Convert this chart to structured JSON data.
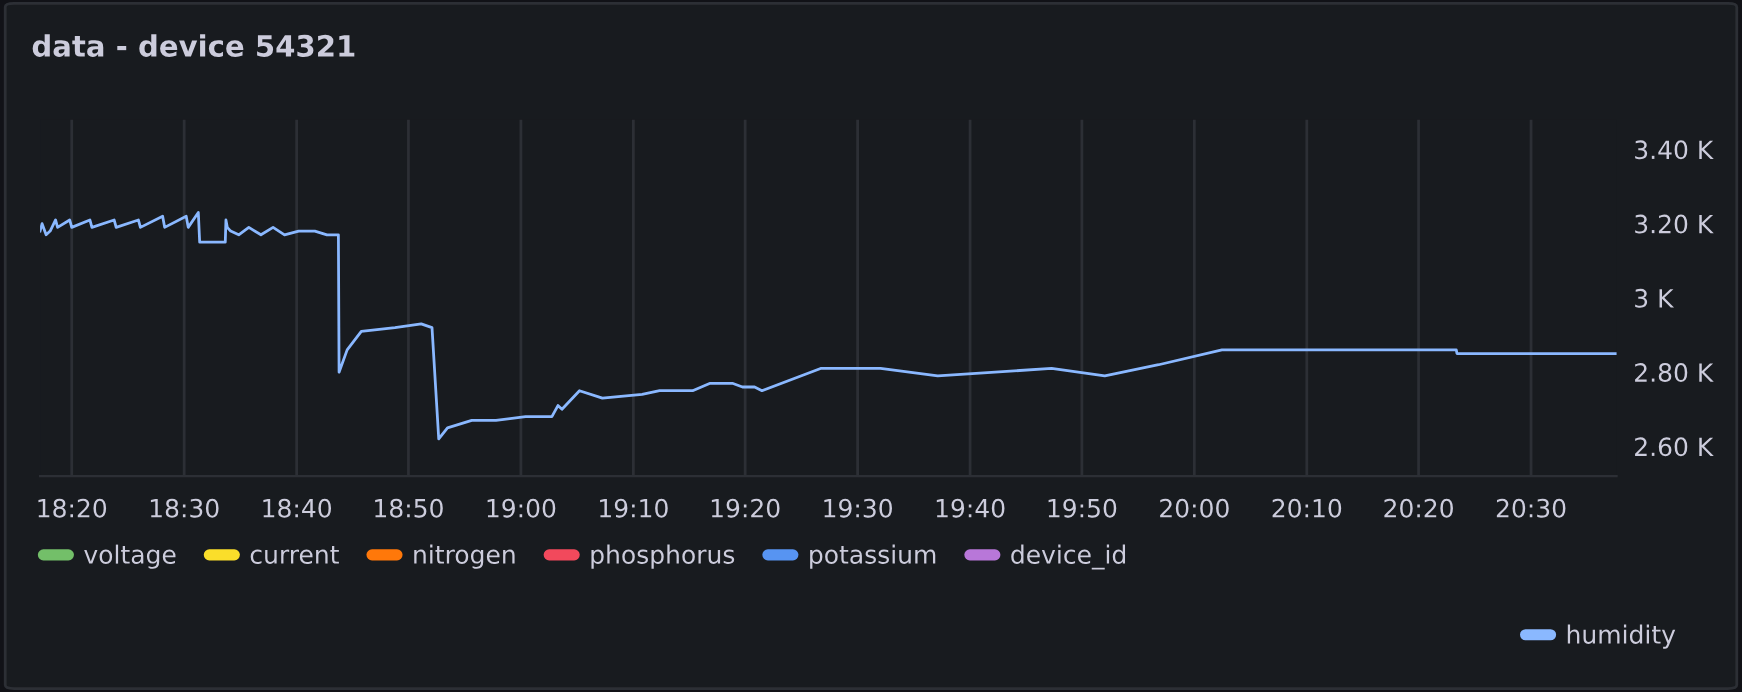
{
  "chart_data": {
    "type": "line",
    "title": "data - device 54321",
    "series": [
      {
        "name": "voltage",
        "color": "#73bf69"
      },
      {
        "name": "current",
        "color": "#fade2a"
      },
      {
        "name": "nitrogen",
        "color": "#ff780a"
      },
      {
        "name": "phosphorus",
        "color": "#f2495c"
      },
      {
        "name": "potassium",
        "color": "#5794f2"
      },
      {
        "name": "device_id",
        "color": "#b877d9"
      },
      {
        "name": "humidity",
        "color": "#8ab8ff",
        "x": [
          18.286,
          18.289,
          18.295,
          18.301,
          18.309,
          18.312,
          18.33,
          18.333,
          18.36,
          18.363,
          18.396,
          18.399,
          18.432,
          18.435,
          18.468,
          18.471,
          18.503,
          18.506,
          18.521,
          18.523,
          18.561,
          18.562,
          18.564,
          18.569,
          18.581,
          18.596,
          18.614,
          18.632,
          18.649,
          18.67,
          18.694,
          18.712,
          18.729,
          18.73,
          18.742,
          18.763,
          18.813,
          18.852,
          18.868,
          18.878,
          18.891,
          18.927,
          18.933,
          18.963,
          19.007,
          19.046,
          19.055,
          19.061,
          19.087,
          19.121,
          19.18,
          19.206,
          19.255,
          19.281,
          19.314,
          19.329,
          19.347,
          19.358,
          19.445,
          19.534,
          19.619,
          19.788,
          19.867,
          19.947,
          20.041,
          20.389,
          20.39,
          20.627
        ],
        "values": [
          3180,
          3200,
          3170,
          3180,
          3210,
          3190,
          3210,
          3190,
          3210,
          3190,
          3210,
          3190,
          3210,
          3190,
          3220,
          3190,
          3220,
          3190,
          3230,
          3150,
          3150,
          3210,
          3190,
          3180,
          3170,
          3190,
          3170,
          3190,
          3170,
          3180,
          3180,
          3170,
          3170,
          2800,
          2860,
          2910,
          2920,
          2930,
          2920,
          2620,
          2650,
          2670,
          2670,
          2670,
          2680,
          2680,
          2710,
          2700,
          2750,
          2730,
          2740,
          2750,
          2750,
          2770,
          2770,
          2760,
          2760,
          2750,
          2810,
          2810,
          2790,
          2810,
          2790,
          2820,
          2860,
          2860,
          2850,
          2850
        ]
      }
    ],
    "xticks": [
      {
        "value": 18.333,
        "label": "18:20"
      },
      {
        "value": 18.5,
        "label": "18:30"
      },
      {
        "value": 18.667,
        "label": "18:40"
      },
      {
        "value": 18.833,
        "label": "18:50"
      },
      {
        "value": 19,
        "label": "19:00"
      },
      {
        "value": 19.167,
        "label": "19:10"
      },
      {
        "value": 19.333,
        "label": "19:20"
      },
      {
        "value": 19.5,
        "label": "19:30"
      },
      {
        "value": 19.667,
        "label": "19:40"
      },
      {
        "value": 19.833,
        "label": "19:50"
      },
      {
        "value": 20,
        "label": "20:00"
      },
      {
        "value": 20.167,
        "label": "20:10"
      },
      {
        "value": 20.333,
        "label": "20:20"
      },
      {
        "value": 20.5,
        "label": "20:30"
      }
    ],
    "xlim": [
      18.286,
      20.627
    ],
    "ylim": [
      2520,
      3480
    ],
    "yticks": [
      {
        "value": 2600,
        "label": "2.60 K"
      },
      {
        "value": 2800,
        "label": "2.80 K"
      },
      {
        "value": 3000,
        "label": "3 K"
      },
      {
        "value": 3200,
        "label": "3.20 K"
      },
      {
        "value": 3400,
        "label": "3.40 K"
      }
    ],
    "grid": "x",
    "legend": "bottom",
    "marker": "none",
    "line_style": "solid"
  }
}
